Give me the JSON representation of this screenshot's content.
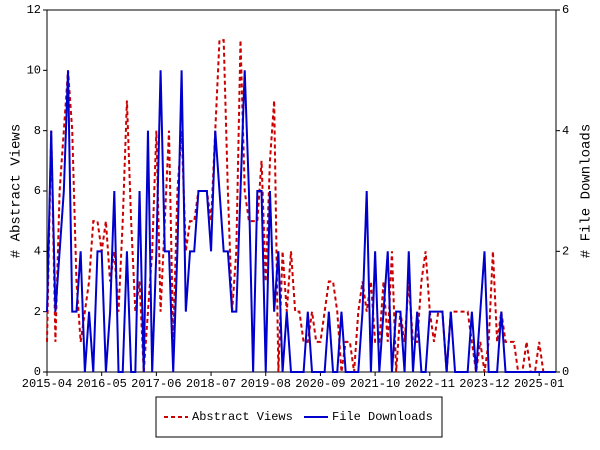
{
  "chart_data": {
    "type": "line",
    "y_label": "# Abstract Views",
    "y2_label": "# File Downloads",
    "x": [
      "2015-04",
      "2015-05",
      "2015-06",
      "2015-07",
      "2015-08",
      "2015-09",
      "2015-10",
      "2015-11",
      "2015-12",
      "2016-01",
      "2016-02",
      "2016-03",
      "2016-04",
      "2016-05",
      "2016-06",
      "2016-07",
      "2016-08",
      "2016-09",
      "2016-10",
      "2016-11",
      "2016-12",
      "2017-01",
      "2017-02",
      "2017-03",
      "2017-04",
      "2017-05",
      "2017-06",
      "2017-07",
      "2017-08",
      "2017-09",
      "2017-10",
      "2017-11",
      "2017-12",
      "2018-01",
      "2018-02",
      "2018-03",
      "2018-04",
      "2018-05",
      "2018-06",
      "2018-07",
      "2018-08",
      "2018-09",
      "2018-10",
      "2018-11",
      "2018-12",
      "2019-01",
      "2019-02",
      "2019-03",
      "2019-04",
      "2019-05",
      "2019-06",
      "2019-07",
      "2019-08",
      "2019-09",
      "2019-10",
      "2019-11",
      "2019-12",
      "2020-01",
      "2020-02",
      "2020-03",
      "2020-04",
      "2020-05",
      "2020-06",
      "2020-07",
      "2020-08",
      "2020-09",
      "2020-10",
      "2020-11",
      "2020-12",
      "2021-01",
      "2021-02",
      "2021-03",
      "2021-04",
      "2021-05",
      "2021-06",
      "2021-07",
      "2021-08",
      "2021-09",
      "2021-10",
      "2021-11",
      "2021-12",
      "2022-01",
      "2022-02",
      "2022-03",
      "2022-04",
      "2022-05",
      "2022-06",
      "2022-07",
      "2022-08",
      "2022-09",
      "2022-10",
      "2022-11",
      "2022-12",
      "2023-01",
      "2023-02",
      "2023-03",
      "2023-04",
      "2023-05",
      "2023-06",
      "2023-07",
      "2023-08",
      "2023-09",
      "2023-10",
      "2023-11",
      "2023-12",
      "2024-01",
      "2024-02",
      "2024-03",
      "2024-04",
      "2024-05",
      "2024-06",
      "2024-07",
      "2024-08",
      "2024-09",
      "2024-10",
      "2024-11",
      "2024-12",
      "2025-01",
      "2025-02",
      "2025-03",
      "2025-04",
      "2025-05"
    ],
    "series": [
      {
        "name": "Abstract Views",
        "color": "#cc0000",
        "dashed": true,
        "values": [
          1,
          8,
          1,
          6,
          8,
          10,
          8,
          3,
          1,
          2,
          3,
          5,
          5,
          4,
          5,
          3,
          4,
          2,
          5,
          9,
          5,
          2,
          3,
          0,
          2,
          4,
          8,
          2,
          5,
          8,
          1,
          6,
          8,
          4,
          5,
          5,
          6,
          6,
          6,
          5,
          8,
          11,
          11,
          6,
          2,
          4,
          11,
          6,
          5,
          5,
          5,
          7,
          3,
          7,
          9,
          0,
          4,
          2,
          4,
          2,
          2,
          1,
          1,
          2,
          1,
          1,
          2,
          3,
          3,
          2,
          0,
          1,
          1,
          0,
          2,
          3,
          2,
          3,
          1,
          1,
          3,
          1,
          4,
          0,
          2,
          1,
          3,
          1,
          1,
          3,
          4,
          2,
          1,
          2,
          2,
          0,
          2,
          2,
          2,
          2,
          2,
          1,
          0,
          1,
          0,
          1,
          4,
          1,
          2,
          1,
          1,
          1,
          0,
          0,
          1,
          0,
          0,
          1,
          0,
          0,
          0,
          0
        ]
      },
      {
        "name": "File Downloads",
        "color": "#0000cc",
        "axis": "y2",
        "values": [
          1,
          4,
          1,
          2,
          3,
          5,
          1,
          1,
          2,
          0,
          1,
          0,
          2,
          2,
          0,
          1,
          3,
          0,
          0,
          2,
          0,
          0,
          3,
          0,
          4,
          0,
          2,
          5,
          2,
          2,
          0,
          2,
          5,
          1,
          2,
          2,
          3,
          3,
          3,
          2,
          4,
          3,
          2,
          2,
          1,
          1,
          3,
          5,
          3,
          0,
          3,
          3,
          0,
          3,
          1,
          2,
          0,
          1,
          0,
          0,
          0,
          0,
          1,
          0,
          0,
          0,
          0,
          1,
          0,
          0,
          1,
          0,
          0,
          0,
          0,
          1,
          3,
          0,
          2,
          0,
          1,
          2,
          0,
          1,
          1,
          0,
          2,
          0,
          1,
          0,
          0,
          1,
          1,
          1,
          1,
          0,
          1,
          0,
          0,
          0,
          0,
          1,
          0,
          1,
          2,
          0,
          0,
          0,
          1,
          0,
          0,
          0,
          0,
          0,
          0,
          0,
          0,
          0,
          0,
          0,
          0,
          0
        ]
      }
    ],
    "xlim": [
      "2015-04",
      "2025-05"
    ],
    "xticks": [
      "2015-04",
      "2016-05",
      "2017-06",
      "2018-07",
      "2019-08",
      "2020-09",
      "2021-10",
      "2022-11",
      "2023-12",
      "2025-01"
    ],
    "ylim": [
      0,
      12
    ],
    "yticks": [
      0,
      2,
      4,
      6,
      8,
      10,
      12
    ],
    "y2lim": [
      0,
      6
    ],
    "y2ticks": [
      0,
      2,
      4,
      6
    ],
    "legend": "bottom"
  }
}
